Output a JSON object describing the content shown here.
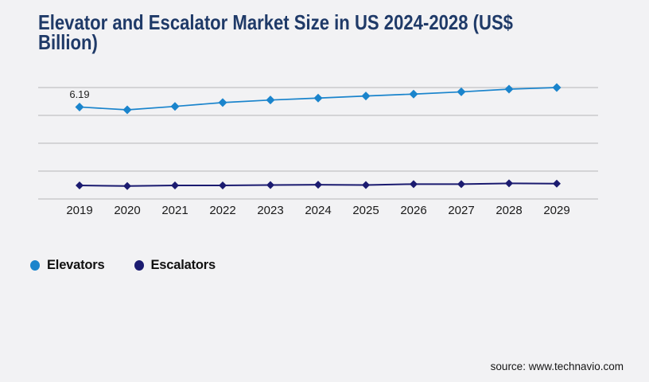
{
  "title": {
    "full": "Elevator and Escalator Market Size in US 2024-2028 (US$ Billion)",
    "line1": "Elevator and Escalator Market Size in US 2024-2028 (US$",
    "line2": "Billion)"
  },
  "source": "source: www.technavio.com",
  "colors": {
    "background": "#f2f2f4",
    "grid": "#c9c9cc",
    "title": "#1f3a68",
    "elevators": "#1a84cc",
    "escalators": "#1b1b70",
    "text": "#1a1a1a"
  },
  "legend": {
    "items": [
      {
        "label": "Elevators",
        "color": "#1a84cc",
        "marker": "circle"
      },
      {
        "label": "Escalators",
        "color": "#1b1b70",
        "marker": "circle"
      }
    ]
  },
  "chart_data": {
    "type": "line",
    "title": "Elevator and Escalator Market Size in US 2024-2028 (US$ Billion)",
    "xlabel": "",
    "ylabel": "",
    "categories": [
      "2019",
      "2020",
      "2021",
      "2022",
      "2023",
      "2024",
      "2025",
      "2026",
      "2027",
      "2028",
      "2029"
    ],
    "series": [
      {
        "name": "Elevators",
        "color": "#1a84cc",
        "marker": "diamond",
        "values": [
          6.19,
          6.0,
          6.23,
          6.49,
          6.66,
          6.79,
          6.93,
          7.06,
          7.21,
          7.39,
          7.5
        ]
      },
      {
        "name": "Escalators",
        "color": "#1b1b70",
        "marker": "diamond",
        "values": [
          0.91,
          0.87,
          0.91,
          0.91,
          0.94,
          0.96,
          0.94,
          1.0,
          1.0,
          1.05,
          1.03
        ]
      }
    ],
    "data_labels": [
      {
        "series_index": 0,
        "point_index": 0,
        "text": "6.19"
      }
    ],
    "ylim": [
      0,
      7.5
    ],
    "gridline_count": 5,
    "grid": "horizontal",
    "y_ticks_visible": false,
    "legend_position": "bottom-left"
  }
}
